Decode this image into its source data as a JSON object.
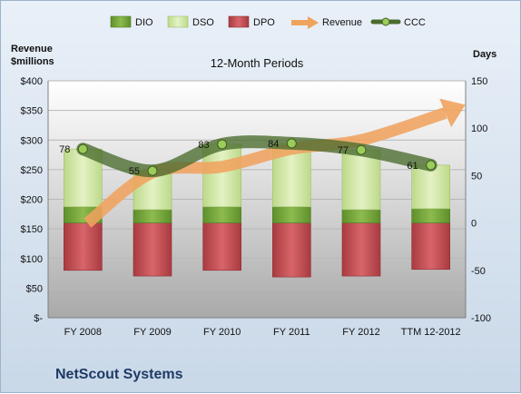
{
  "chart_data": {
    "type": "bar",
    "title": "12-Month Periods",
    "company": "NetScout Systems",
    "left_axis_label_line1": "Revenue",
    "left_axis_label_line2": "$millions",
    "right_axis_label": "Days",
    "categories": [
      "FY 2008",
      "FY 2009",
      "FY 2010",
      "FY 2011",
      "FY 2012",
      "TTM 12-2012"
    ],
    "left_axis": {
      "min": 0,
      "max": 400,
      "step": 50,
      "tick_labels": [
        "$-",
        "$50",
        "$100",
        "$150",
        "$200",
        "$250",
        "$300",
        "$350",
        "$400"
      ]
    },
    "right_axis": {
      "min": -100,
      "max": 150,
      "step": 50,
      "tick_labels": [
        "-100",
        "-50",
        "0",
        "50",
        "100",
        "150"
      ]
    },
    "series": [
      {
        "name": "DIO",
        "type": "stacked-bar",
        "axis": "right",
        "color": "#76a83a",
        "values": [
          17,
          14,
          17,
          17,
          14,
          15
        ]
      },
      {
        "name": "DSO",
        "type": "stacked-bar",
        "axis": "right",
        "color": "#cfe5a0",
        "values": [
          61,
          41,
          66,
          67,
          63,
          46
        ]
      },
      {
        "name": "DPO",
        "type": "stacked-bar-negative",
        "axis": "right",
        "color": "#c9494f",
        "values": [
          -50,
          -56,
          -50,
          -57,
          -56,
          -49
        ]
      },
      {
        "name": "Revenue",
        "type": "arrow-line",
        "axis": "left",
        "color": "#f0a35e",
        "values": [
          160,
          245,
          255,
          285,
          300,
          335
        ]
      },
      {
        "name": "CCC",
        "type": "line",
        "axis": "right",
        "color": "#4a6b2e",
        "values": [
          78,
          55,
          83,
          84,
          77,
          61
        ],
        "labels": [
          "78",
          "55",
          "83",
          "84",
          "77",
          "61"
        ]
      }
    ],
    "grid": true,
    "legend_position": "top"
  }
}
